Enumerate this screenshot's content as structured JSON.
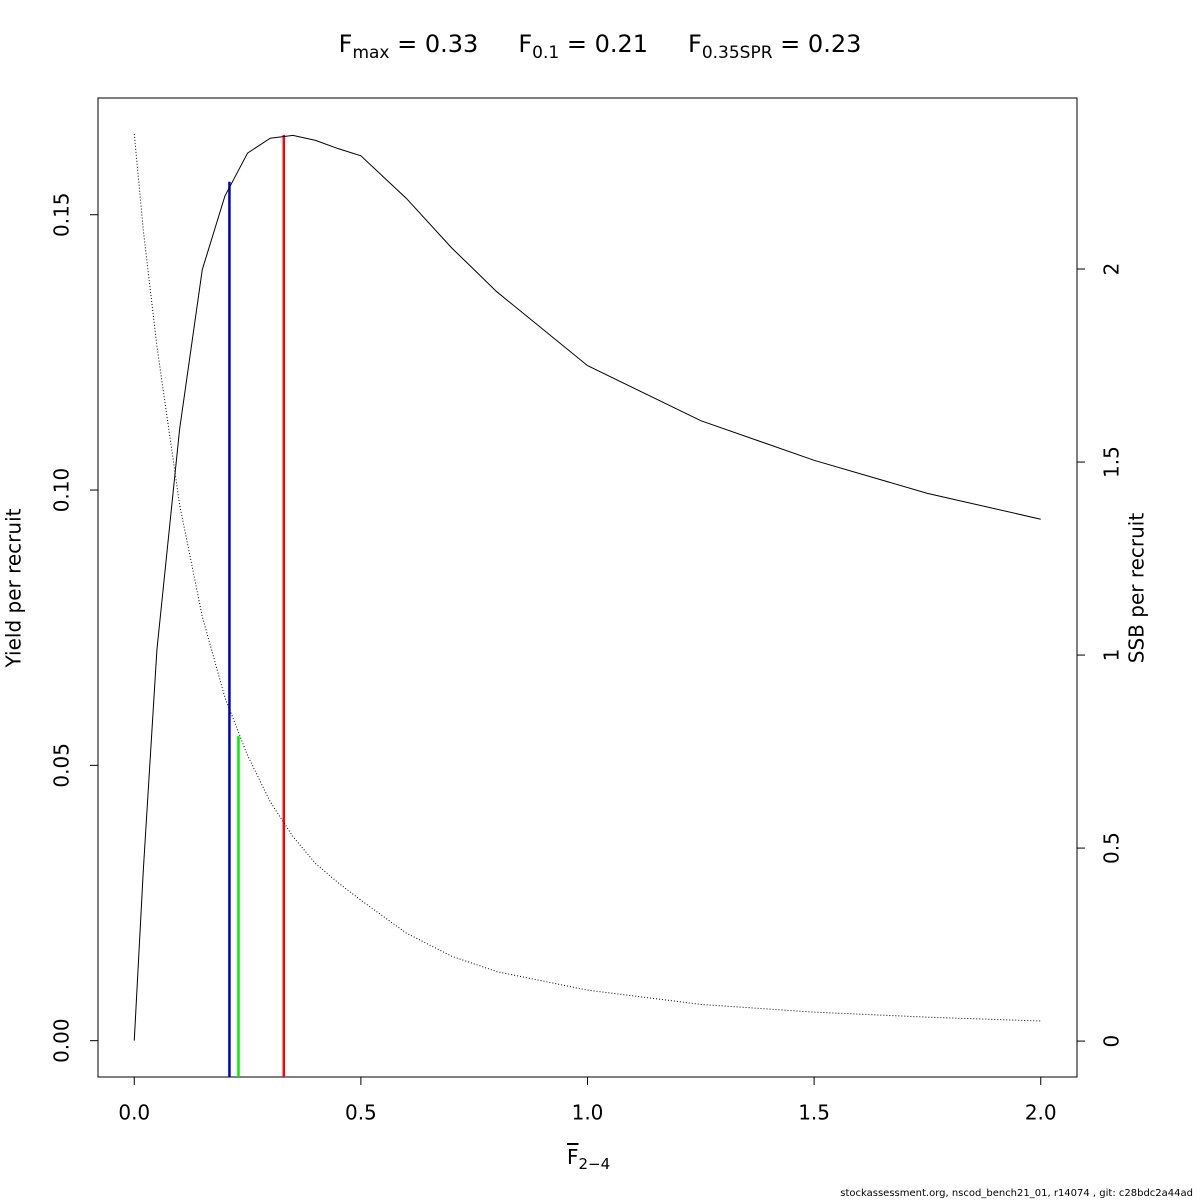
{
  "chart_data": {
    "type": "line",
    "title_parts": [
      {
        "symbol": "F",
        "subscript": "max",
        "value": 0.33,
        "color": "#ff0000",
        "top": 0.1645,
        "top_axis": "y"
      },
      {
        "symbol": "F",
        "subscript": "0.1",
        "value": 0.21,
        "color": "#0000cd",
        "top": 0.156,
        "top_axis": "y"
      },
      {
        "symbol": "F",
        "subscript": "0.35SPR",
        "value": 0.23,
        "color": "#00ee00",
        "top": 0.79,
        "top_axis": "y2"
      }
    ],
    "equals": "=",
    "xlabel": {
      "symbol": "F",
      "subscript": "2−4"
    },
    "ylabel": "Yield per recruit",
    "y2label": "SSB per recruit",
    "footer": "stockassessment.org, nscod_bench21_01, r14074 , git: c28bdc2a44ad",
    "x": [
      0,
      0.02,
      0.05,
      0.1,
      0.15,
      0.2,
      0.25,
      0.3,
      0.35,
      0.4,
      0.45,
      0.5,
      0.6,
      0.7,
      0.75,
      0.8,
      1.0,
      1.25,
      1.5,
      1.75,
      2.0
    ],
    "series": [
      {
        "name": "Yield per recruit",
        "color": "#000000",
        "style": "solid",
        "values": [
          0,
          0.031,
          0.071,
          0.111,
          0.14,
          0.1534,
          0.1612,
          0.1639,
          0.1644,
          0.1635,
          0.162,
          0.1607,
          0.153,
          0.144,
          0.14,
          0.136,
          0.1226,
          0.1126,
          0.1054,
          0.0994,
          0.0947
        ]
      },
      {
        "name": "SSB per recruit",
        "color": "#000000",
        "style": "dotted",
        "axis": "y2",
        "values": [
          2.35,
          2.1,
          1.8,
          1.39,
          1.1,
          0.89,
          0.74,
          0.62,
          0.53,
          0.46,
          0.41,
          0.365,
          0.28,
          0.22,
          0.2,
          0.18,
          0.132,
          0.095,
          0.075,
          0.062,
          0.052
        ]
      }
    ],
    "xlim": [
      -0.08,
      2.08
    ],
    "xticks": [
      {
        "value": 0,
        "label": "0.0"
      },
      {
        "value": 0.5,
        "label": "0.5"
      },
      {
        "value": 1,
        "label": "1.0"
      },
      {
        "value": 1.5,
        "label": "1.5"
      },
      {
        "value": 2,
        "label": "2.0"
      }
    ],
    "ylim": [
      -0.0066,
      0.1712
    ],
    "yticks": [
      {
        "value": 0,
        "label": "0.00"
      },
      {
        "value": 0.05,
        "label": "0.05"
      },
      {
        "value": 0.1,
        "label": "0.10"
      },
      {
        "value": 0.15,
        "label": "0.15"
      }
    ],
    "y2lim": [
      -0.093,
      2.443
    ],
    "y2ticks": [
      0,
      0.5,
      1,
      1.5,
      2
    ]
  }
}
